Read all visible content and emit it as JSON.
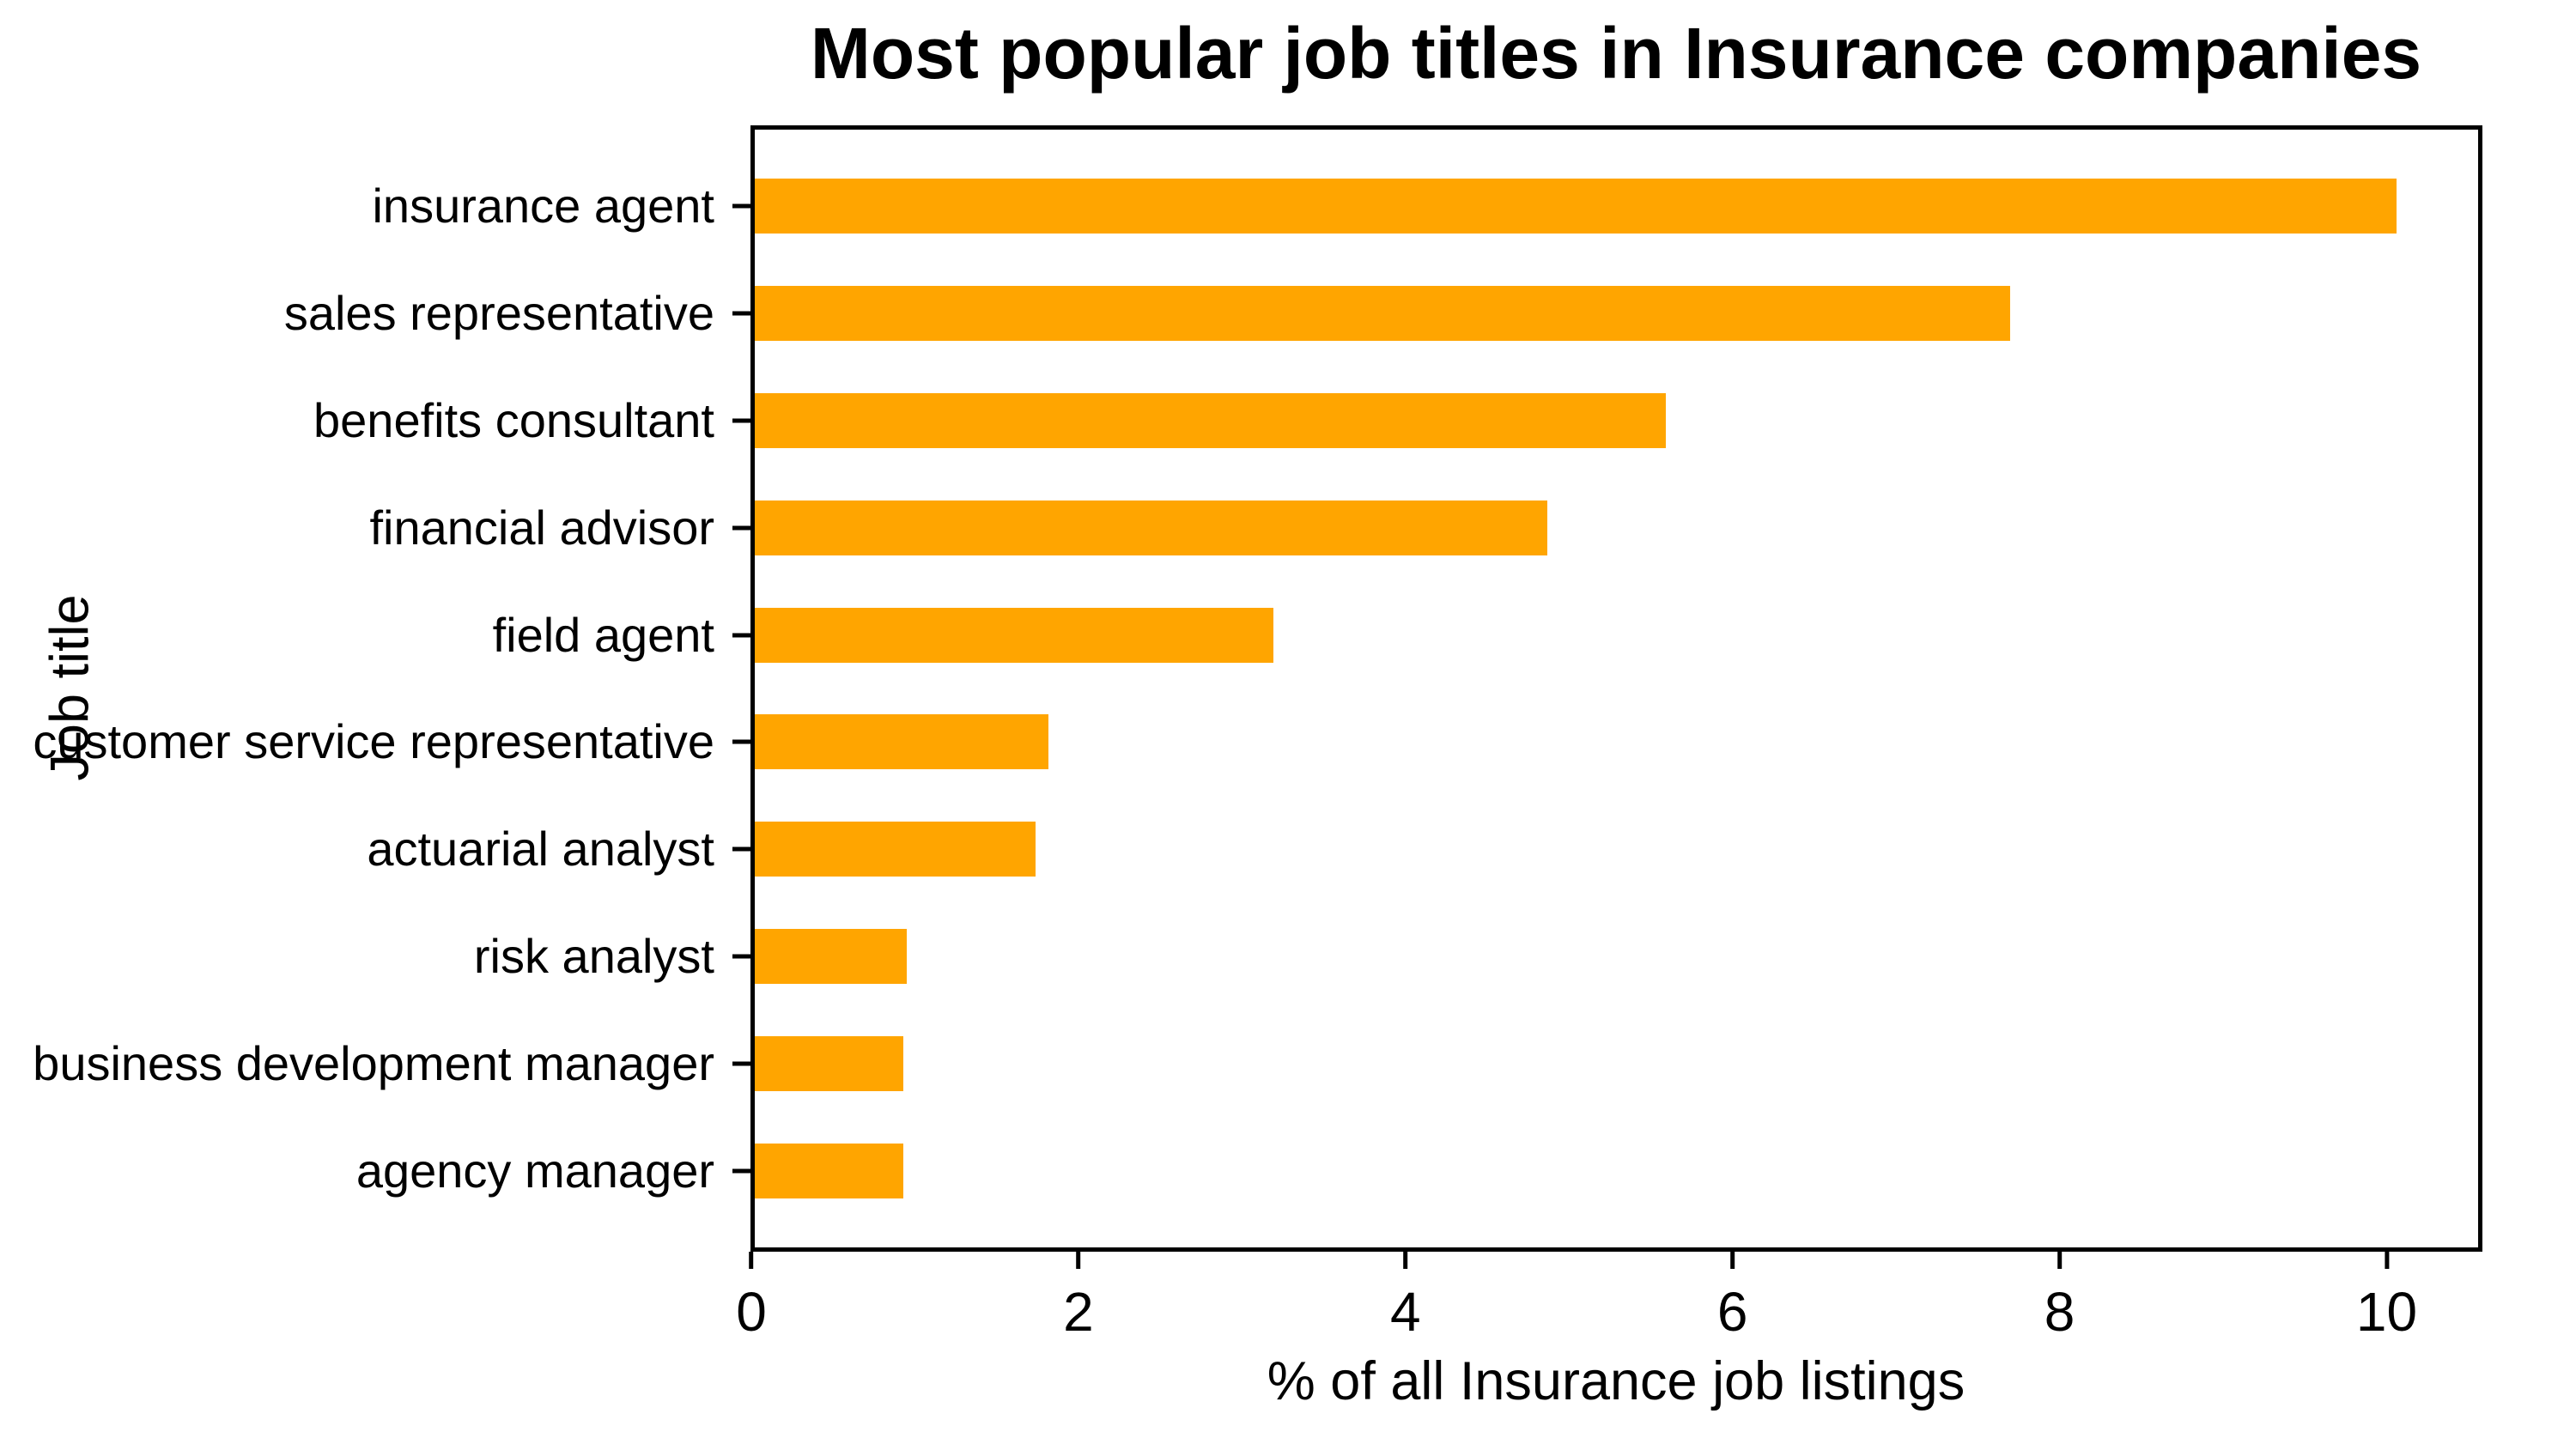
{
  "figure": {
    "title": "Most popular job titles in Insurance companies",
    "xlabel": "% of all Insurance job listings",
    "ylabel": "Job title"
  },
  "colors": {
    "bar": "#FFA500",
    "axis": "#000000",
    "background": "#FFFFFF",
    "text": "#000000"
  },
  "chart_data": {
    "type": "bar",
    "orientation": "horizontal",
    "title": "Most popular job titles in Insurance companies",
    "xlabel": "% of all Insurance job listings",
    "ylabel": "Job title",
    "categories": [
      "insurance agent",
      "sales representative",
      "benefits consultant",
      "financial advisor",
      "field agent",
      "customer service representative",
      "actuarial analyst",
      "risk analyst",
      "business development manager",
      "agency manager"
    ],
    "values": [
      10.07,
      7.7,
      5.59,
      4.86,
      3.18,
      1.8,
      1.72,
      0.93,
      0.91,
      0.91
    ],
    "xlim": [
      0,
      10.57
    ],
    "xticks": [
      0,
      2,
      4,
      6,
      8,
      10
    ],
    "grid": false,
    "legend": false,
    "bar_color": "#FFA500",
    "bar_height_fraction": 0.5
  }
}
